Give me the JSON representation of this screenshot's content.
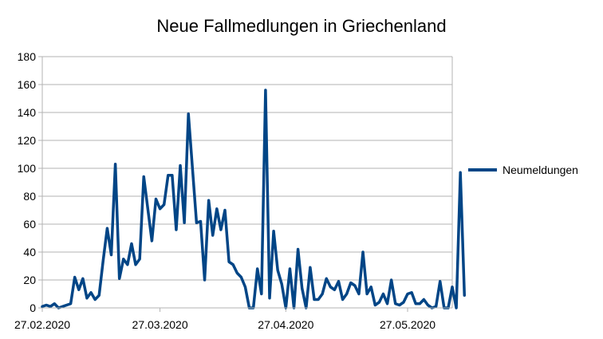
{
  "chart_data": {
    "type": "line",
    "title": "Neue Fallmedlungen in Griechenland",
    "xlabel": "",
    "ylabel": "",
    "ylim": [
      0,
      180
    ],
    "yticks": [
      0,
      20,
      40,
      60,
      80,
      100,
      120,
      140,
      160,
      180
    ],
    "x_start": "27.02.2020",
    "x_end": "07.06.2020",
    "xtick_labels": [
      "27.02.2020",
      "27.03.2020",
      "27.04.2020",
      "27.05.2020"
    ],
    "grid": "horizontal",
    "legend_position": "right",
    "series": [
      {
        "name": "Neumeldungen",
        "color": "#004586",
        "values": [
          1,
          2,
          1,
          3,
          0,
          1,
          2,
          3,
          22,
          13,
          21,
          7,
          11,
          6,
          9,
          34,
          57,
          38,
          103,
          21,
          35,
          31,
          46,
          31,
          35,
          94,
          71,
          48,
          78,
          71,
          74,
          95,
          95,
          56,
          102,
          61,
          139,
          100,
          61,
          62,
          20,
          77,
          52,
          71,
          56,
          70,
          33,
          31,
          25,
          22,
          15,
          0,
          0,
          28,
          10,
          156,
          7,
          55,
          27,
          17,
          0,
          28,
          0,
          42,
          14,
          0,
          29,
          6,
          6,
          10,
          21,
          15,
          13,
          19,
          6,
          10,
          18,
          16,
          10,
          40,
          10,
          15,
          2,
          4,
          10,
          3,
          20,
          3,
          2,
          4,
          10,
          11,
          3,
          3,
          6,
          2,
          0,
          1,
          19,
          0,
          0,
          15,
          0,
          97,
          9
        ]
      }
    ]
  }
}
